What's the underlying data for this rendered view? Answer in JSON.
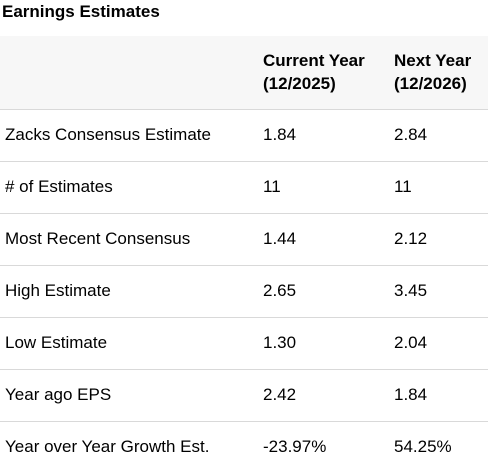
{
  "title": "Earnings Estimates",
  "columns": [
    {
      "line1": "",
      "line2": ""
    },
    {
      "line1": "Current Year",
      "line2": "(12/2025)"
    },
    {
      "line1": "Next Year",
      "line2": "(12/2026)"
    }
  ],
  "rows": [
    {
      "label": "Zacks Consensus Estimate",
      "current": "1.84",
      "next": "2.84"
    },
    {
      "label": "# of Estimates",
      "current": "11",
      "next": "11"
    },
    {
      "label": "Most Recent Consensus",
      "current": "1.44",
      "next": "2.12"
    },
    {
      "label": "High Estimate",
      "current": "2.65",
      "next": "3.45"
    },
    {
      "label": "Low Estimate",
      "current": "1.30",
      "next": "2.04"
    },
    {
      "label": "Year ago EPS",
      "current": "2.42",
      "next": "1.84"
    },
    {
      "label": "Year over Year Growth Est.",
      "current": "-23.97%",
      "next": "54.25%"
    }
  ]
}
